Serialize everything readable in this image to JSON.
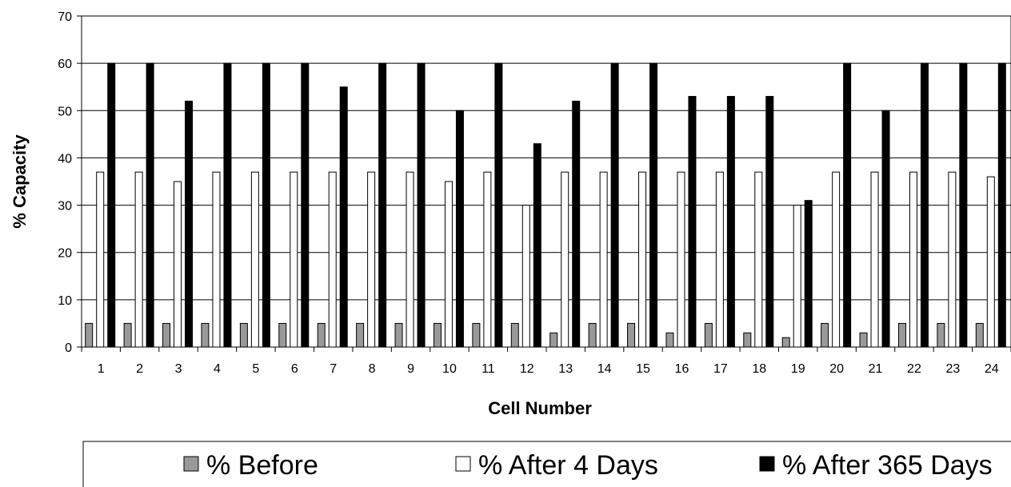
{
  "chart_data": {
    "type": "bar",
    "xlabel": "Cell Number",
    "ylabel": "% Capacity",
    "ylim": [
      0,
      70
    ],
    "yticks": [
      0,
      10,
      20,
      30,
      40,
      50,
      60,
      70
    ],
    "grid": true,
    "legend_position": "bottom",
    "categories": [
      "1",
      "2",
      "3",
      "4",
      "5",
      "6",
      "7",
      "8",
      "9",
      "10",
      "11",
      "12",
      "13",
      "14",
      "15",
      "16",
      "17",
      "18",
      "19",
      "20",
      "21",
      "22",
      "23",
      "24"
    ],
    "series": [
      {
        "name": "% Before",
        "color": "#999999",
        "values": [
          5,
          5,
          5,
          5,
          5,
          5,
          5,
          5,
          5,
          5,
          5,
          5,
          3,
          5,
          5,
          3,
          5,
          3,
          2,
          5,
          3,
          5,
          5,
          5
        ]
      },
      {
        "name": "% After 4 Days",
        "color": "#ffffff",
        "values": [
          37,
          37,
          35,
          37,
          37,
          37,
          37,
          37,
          37,
          35,
          37,
          30,
          37,
          37,
          37,
          37,
          37,
          37,
          30,
          37,
          37,
          37,
          37,
          36
        ]
      },
      {
        "name": "% After 365 Days",
        "color": "#000000",
        "values": [
          60,
          60,
          52,
          60,
          60,
          60,
          55,
          60,
          60,
          50,
          60,
          43,
          52,
          60,
          60,
          53,
          53,
          53,
          31,
          60,
          50,
          60,
          60,
          60
        ]
      }
    ]
  }
}
